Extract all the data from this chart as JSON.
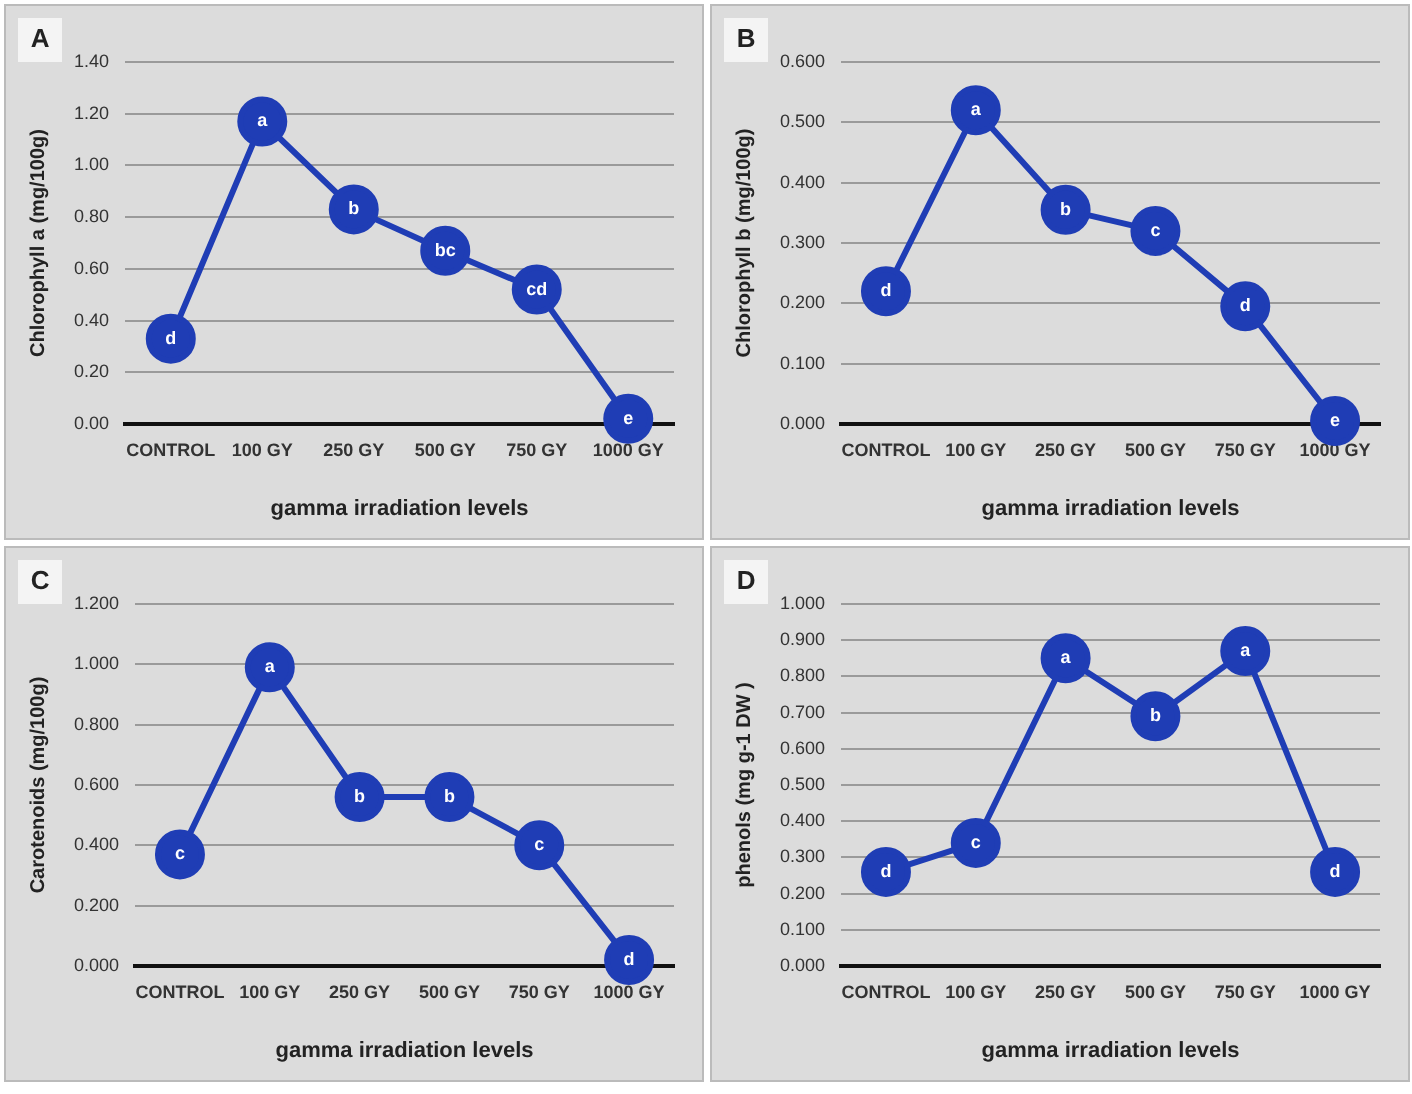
{
  "chart_data": [
    {
      "type": "line",
      "xlabel": "gamma irradiation levels",
      "ylabel": "Chlorophyll a (mg/100g)",
      "categories": [
        "CONTROL",
        "100 GY",
        "250 GY",
        "500 GY",
        "750 GY",
        "1000 GY"
      ],
      "series": [
        {
          "color": "#1f3db5",
          "values": [
            0.33,
            1.17,
            0.83,
            0.67,
            0.52,
            0.02
          ]
        }
      ],
      "ylim": [
        0,
        1.4
      ],
      "yticks": [
        {
          "value": 0,
          "label": "0.00"
        },
        {
          "value": 0.2,
          "label": "0.20"
        },
        {
          "value": 0.4,
          "label": "0.40"
        },
        {
          "value": 0.6,
          "label": "0.60"
        },
        {
          "value": 0.8,
          "label": "0.80"
        },
        {
          "value": 1,
          "label": "1.00"
        },
        {
          "value": 1.2,
          "label": "1.20"
        },
        {
          "value": 1.4,
          "label": "1.40"
        }
      ],
      "grid": "y",
      "legend": false,
      "marker": "circle",
      "line_style": "solid",
      "annotations": [
        "A",
        {
          "text": "d",
          "x": "CONTROL",
          "y": 0.33
        },
        {
          "text": "a",
          "x": "100 GY",
          "y": 1.17
        },
        {
          "text": "b",
          "x": "250 GY",
          "y": 0.83
        },
        {
          "text": "bc",
          "x": "500 GY",
          "y": 0.67
        },
        {
          "text": "cd",
          "x": "750 GY",
          "y": 0.52
        },
        {
          "text": "e",
          "x": "1000 GY",
          "y": 0.02
        }
      ]
    },
    {
      "type": "line",
      "xlabel": "gamma irradiation levels",
      "ylabel": "Chlorophyll b (mg/100g)",
      "categories": [
        "CONTROL",
        "100 GY",
        "250 GY",
        "500 GY",
        "750 GY",
        "1000 GY"
      ],
      "series": [
        {
          "color": "#1f3db5",
          "values": [
            0.22,
            0.52,
            0.355,
            0.32,
            0.195,
            0.005
          ]
        }
      ],
      "ylim": [
        0,
        0.6
      ],
      "yticks": [
        {
          "value": 0,
          "label": "0.000"
        },
        {
          "value": 0.1,
          "label": "0.100"
        },
        {
          "value": 0.2,
          "label": "0.200"
        },
        {
          "value": 0.3,
          "label": "0.300"
        },
        {
          "value": 0.4,
          "label": "0.400"
        },
        {
          "value": 0.5,
          "label": "0.500"
        },
        {
          "value": 0.6,
          "label": "0.600"
        }
      ],
      "grid": "y",
      "legend": false,
      "marker": "circle",
      "line_style": "solid",
      "annotations": [
        "B",
        {
          "text": "d",
          "x": "CONTROL",
          "y": 0.22
        },
        {
          "text": "a",
          "x": "100 GY",
          "y": 0.52
        },
        {
          "text": "b",
          "x": "250 GY",
          "y": 0.355
        },
        {
          "text": "c",
          "x": "500 GY",
          "y": 0.32
        },
        {
          "text": "d",
          "x": "750 GY",
          "y": 0.195
        },
        {
          "text": "e",
          "x": "1000 GY",
          "y": 0.005
        }
      ]
    },
    {
      "type": "line",
      "xlabel": "gamma irradiation levels",
      "ylabel": "Carotenoids (mg/100g)",
      "categories": [
        "CONTROL",
        "100 GY",
        "250 GY",
        "500 GY",
        "750 GY",
        "1000 GY"
      ],
      "series": [
        {
          "color": "#1f3db5",
          "values": [
            0.37,
            0.99,
            0.56,
            0.56,
            0.4,
            0.02
          ]
        }
      ],
      "ylim": [
        0,
        1.2
      ],
      "yticks": [
        {
          "value": 0,
          "label": "0.000"
        },
        {
          "value": 0.2,
          "label": "0.200"
        },
        {
          "value": 0.4,
          "label": "0.400"
        },
        {
          "value": 0.6,
          "label": "0.600"
        },
        {
          "value": 0.8,
          "label": "0.800"
        },
        {
          "value": 1,
          "label": "1.000"
        },
        {
          "value": 1.2,
          "label": "1.200"
        }
      ],
      "grid": "y",
      "legend": false,
      "marker": "circle",
      "line_style": "solid",
      "annotations": [
        "C",
        {
          "text": "c",
          "x": "CONTROL",
          "y": 0.37
        },
        {
          "text": "a",
          "x": "100 GY",
          "y": 0.99
        },
        {
          "text": "b",
          "x": "250 GY",
          "y": 0.56
        },
        {
          "text": "b",
          "x": "500 GY",
          "y": 0.56
        },
        {
          "text": "c",
          "x": "750 GY",
          "y": 0.4
        },
        {
          "text": "d",
          "x": "1000 GY",
          "y": 0.02
        }
      ]
    },
    {
      "type": "line",
      "xlabel": "gamma irradiation levels",
      "ylabel": "phenols (mg g-1 DW )",
      "categories": [
        "CONTROL",
        "100 GY",
        "250 GY",
        "500 GY",
        "750 GY",
        "1000 GY"
      ],
      "series": [
        {
          "color": "#1f3db5",
          "values": [
            0.26,
            0.34,
            0.85,
            0.69,
            0.87,
            0.26
          ]
        }
      ],
      "ylim": [
        0,
        1
      ],
      "yticks": [
        {
          "value": 0,
          "label": "0.000"
        },
        {
          "value": 0.1,
          "label": "0.100"
        },
        {
          "value": 0.2,
          "label": "0.200"
        },
        {
          "value": 0.3,
          "label": "0.300"
        },
        {
          "value": 0.4,
          "label": "0.400"
        },
        {
          "value": 0.5,
          "label": "0.500"
        },
        {
          "value": 0.6,
          "label": "0.600"
        },
        {
          "value": 0.7,
          "label": "0.700"
        },
        {
          "value": 0.8,
          "label": "0.800"
        },
        {
          "value": 0.9,
          "label": "0.900"
        },
        {
          "value": 1,
          "label": "1.000"
        }
      ],
      "grid": "y",
      "legend": false,
      "marker": "circle",
      "line_style": "solid",
      "annotations": [
        "D",
        {
          "text": "d",
          "x": "CONTROL",
          "y": 0.26
        },
        {
          "text": "c",
          "x": "100 GY",
          "y": 0.34
        },
        {
          "text": "a",
          "x": "250 GY",
          "y": 0.85
        },
        {
          "text": "b",
          "x": "500 GY",
          "y": 0.69
        },
        {
          "text": "a",
          "x": "750 GY",
          "y": 0.87
        },
        {
          "text": "d",
          "x": "1000 GY",
          "y": 0.26
        }
      ]
    }
  ]
}
